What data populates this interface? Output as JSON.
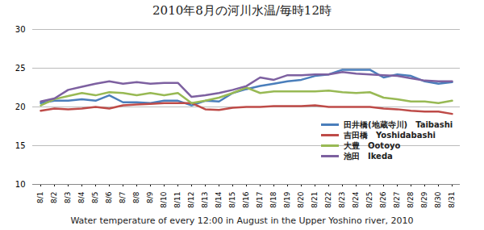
{
  "chart_data": {
    "type": "line",
    "title": "2010年8月の河川水温/毎時12時",
    "xlabel": "Water temperature of every 12:00 in August in the Upper Yoshino river, 2010",
    "categories": [
      "8/1",
      "8/2",
      "8/3",
      "8/4",
      "8/5",
      "8/6",
      "8/7",
      "8/8",
      "8/9",
      "8/10",
      "8/11",
      "8/12",
      "8/13",
      "8/14",
      "8/15",
      "8/16",
      "8/17",
      "8/18",
      "8/19",
      "8/20",
      "8/21",
      "8/22",
      "8/23",
      "8/24",
      "8/25",
      "8/26",
      "8/27",
      "8/28",
      "8/29",
      "8/30",
      "8/31"
    ],
    "series": [
      {
        "name": "田井橋(地蔵寺川)　Taibashi",
        "color": "#4a7ebb",
        "values": [
          20.5,
          20.8,
          20.8,
          21.0,
          20.8,
          21.5,
          20.6,
          20.6,
          20.5,
          20.8,
          20.8,
          20.2,
          20.8,
          20.7,
          21.8,
          22.3,
          22.7,
          23.0,
          23.3,
          23.5,
          24.0,
          24.2,
          24.8,
          24.8,
          24.8,
          23.8,
          24.2,
          24.0,
          23.3,
          23.0,
          23.2
        ]
      },
      {
        "name": "吉田橋　Yoshidabashi",
        "color": "#be4b48",
        "values": [
          19.5,
          19.8,
          19.7,
          19.8,
          20.0,
          19.8,
          20.2,
          20.3,
          20.4,
          20.5,
          20.5,
          20.5,
          19.7,
          19.6,
          19.9,
          20.0,
          20.0,
          20.1,
          20.1,
          20.1,
          20.2,
          20.0,
          20.0,
          20.0,
          20.0,
          19.8,
          19.7,
          19.5,
          19.4,
          19.4,
          19.1
        ]
      },
      {
        "name": "大豊　Ootoyo",
        "color": "#98b954",
        "values": [
          20.2,
          21.0,
          21.4,
          21.8,
          21.5,
          21.9,
          21.8,
          21.5,
          21.8,
          21.5,
          21.8,
          20.5,
          20.8,
          21.2,
          21.8,
          22.5,
          21.8,
          22.0,
          22.0,
          22.0,
          22.0,
          22.1,
          21.9,
          21.8,
          21.9,
          21.2,
          21.0,
          20.7,
          20.7,
          20.5,
          20.8
        ]
      },
      {
        "name": "池田　Ikeda",
        "color": "#7d60a0",
        "values": [
          20.7,
          21.1,
          22.2,
          22.6,
          23.0,
          23.3,
          23.0,
          23.2,
          23.0,
          23.1,
          23.1,
          21.3,
          21.5,
          21.8,
          22.2,
          22.7,
          23.8,
          23.5,
          24.1,
          24.1,
          24.2,
          24.2,
          24.5,
          24.3,
          24.2,
          24.1,
          24.0,
          23.7,
          23.4,
          23.3,
          23.3
        ]
      }
    ],
    "ylim": [
      10,
      30
    ],
    "yticks": [
      10,
      15,
      20,
      25,
      30
    ],
    "grid": true,
    "legend": "right"
  }
}
